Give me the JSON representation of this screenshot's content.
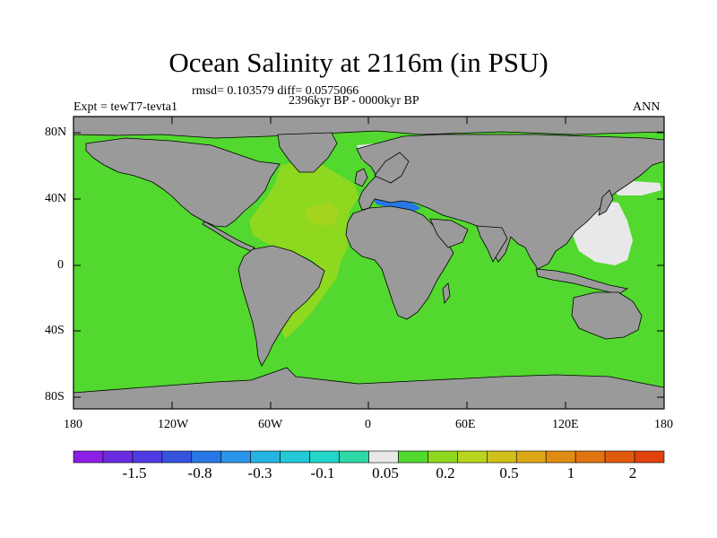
{
  "title": "Ocean Salinity at 2116m (in PSU)",
  "stats": "rmsd= 0.103579 diff= 0.0575066",
  "experiment": "Expt = tewT7-tevta1",
  "period": "2396kyr BP - 0000kyr BP",
  "season": "ANN",
  "lat_ticks": [
    "80N",
    "40N",
    "0",
    "40S",
    "80S"
  ],
  "lon_ticks": [
    "180",
    "120W",
    "60W",
    "0",
    "60E",
    "120E",
    "180"
  ],
  "colorbar": {
    "colors": [
      "#8b1fe6",
      "#6a2ce0",
      "#4e3be4",
      "#3553de",
      "#2877e6",
      "#2a95e8",
      "#25b3e2",
      "#23c9d7",
      "#21d5c8",
      "#2ed8a6",
      "#e8e8e8",
      "#52d82e",
      "#8fd820",
      "#b8d41e",
      "#d1c01a",
      "#dca715",
      "#e08c12",
      "#e07410",
      "#e05a0e",
      "#e0420c"
    ],
    "labels": [
      "-1.5",
      "-0.8",
      "-0.3",
      "-0.1",
      "0.05",
      "0.2",
      "0.5",
      "1",
      "2"
    ]
  },
  "map_colors": {
    "land": "#9a9a9a",
    "ocean": "#52d82e",
    "atlantic": "#8fd820",
    "atlantic_deep": "#a5d41c",
    "light": "#e8e8e8",
    "blue": "#2877e6",
    "cyan": "#25b3e2"
  }
}
